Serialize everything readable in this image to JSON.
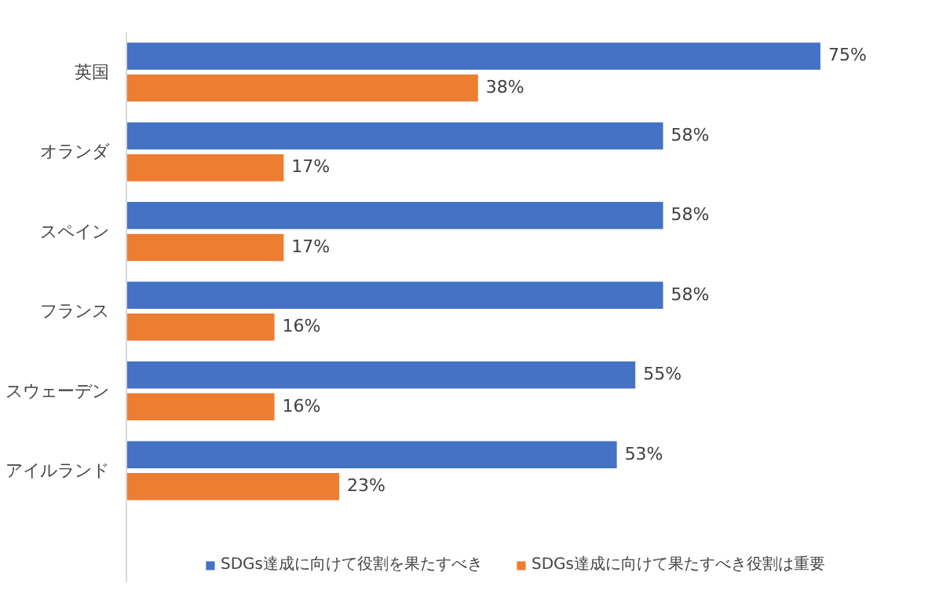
{
  "chart_data": {
    "type": "bar",
    "orientation": "horizontal",
    "categories": [
      "英国",
      "オランダ",
      "スペイン",
      "フランス",
      "スウェーデン",
      "アイルランド"
    ],
    "series": [
      {
        "name": "SDGs達成に向けて役割を果たすべき",
        "color": "#4472c4",
        "values": [
          75,
          58,
          58,
          58,
          55,
          53
        ],
        "value_labels": [
          "75%",
          "58%",
          "58%",
          "58%",
          "55%",
          "53%"
        ]
      },
      {
        "name": "SDGs達成に向けて果たすべき役割は重要",
        "color": "#ed7d31",
        "values": [
          38,
          17,
          17,
          16,
          16,
          23
        ],
        "value_labels": [
          "38%",
          "17%",
          "17%",
          "16%",
          "16%",
          "23%"
        ]
      }
    ],
    "legend": "bottom",
    "grid": false,
    "tick_labels": "y"
  }
}
